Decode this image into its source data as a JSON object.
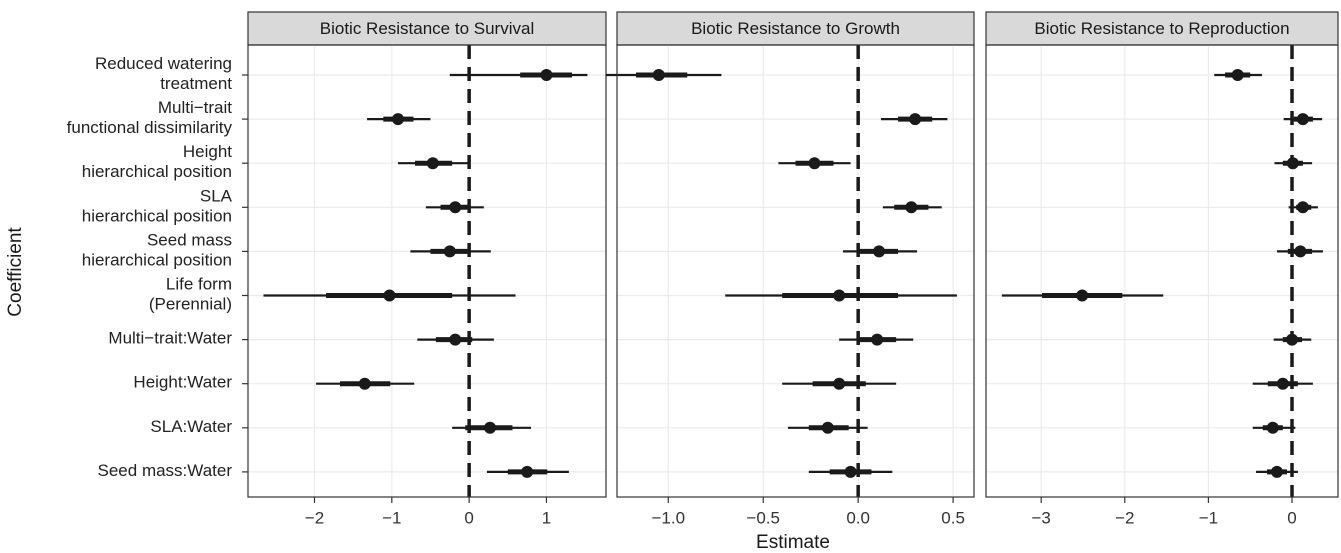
{
  "chart_data": {
    "type": "forest",
    "xlabel": "Estimate",
    "ylabel": "Coefficient",
    "ref_line": 0,
    "grid": true,
    "point_color": "#1a1a1a",
    "categories": [
      "Reduced watering\ntreatment",
      "Multi−trait\nfunctional dissimilarity",
      "Height\nhierarchical position",
      "SLA\nhierarchical position",
      "Seed mass\nhierarchical position",
      "Life form\n(Perennial)",
      "Multi−trait:Water",
      "Height:Water",
      "SLA:Water",
      "Seed mass:Water"
    ],
    "panels": [
      {
        "title": "Biotic Resistance to Survival",
        "xlim": [
          -2.86,
          1.77
        ],
        "xticks": [
          {
            "value": -2,
            "label": "−2"
          },
          {
            "value": -1,
            "label": "−1"
          },
          0,
          1
        ],
        "estimates": [
          1.0,
          -0.92,
          -0.47,
          -0.18,
          -0.25,
          -1.03,
          -0.18,
          -1.35,
          0.27,
          0.75
        ],
        "inner_low": [
          0.66,
          -1.11,
          -0.7,
          -0.37,
          -0.5,
          -1.85,
          -0.43,
          -1.67,
          -0.05,
          0.5
        ],
        "inner_high": [
          1.33,
          -0.72,
          -0.22,
          0.01,
          0.01,
          -0.22,
          0.04,
          -1.02,
          0.56,
          1.01
        ],
        "outer_low": [
          -0.25,
          -1.32,
          -0.92,
          -0.56,
          -0.76,
          -2.66,
          -0.67,
          -1.98,
          -0.22,
          0.23
        ],
        "outer_high": [
          1.53,
          -0.5,
          0.01,
          0.19,
          0.28,
          0.6,
          0.32,
          -0.71,
          0.8,
          1.29
        ]
      },
      {
        "title": "Biotic Resistance to Growth",
        "xlim": [
          -1.27,
          0.61
        ],
        "xticks": [
          {
            "value": -1,
            "label": "−1.0"
          },
          {
            "value": -0.5,
            "label": "−0.5"
          },
          {
            "value": 0,
            "label": "0.0"
          },
          0.5
        ],
        "estimates": [
          -1.05,
          0.3,
          -0.23,
          0.28,
          0.11,
          -0.1,
          0.1,
          -0.1,
          -0.16,
          -0.04
        ],
        "inner_low": [
          -1.17,
          0.21,
          -0.33,
          0.19,
          0,
          -0.4,
          0,
          -0.24,
          -0.26,
          -0.15
        ],
        "inner_high": [
          -0.9,
          0.39,
          -0.13,
          0.37,
          0.21,
          0.21,
          0.2,
          0.04,
          -0.05,
          0.07
        ],
        "outer_low": [
          -1.33,
          0.12,
          -0.42,
          0.13,
          -0.08,
          -0.7,
          -0.1,
          -0.4,
          -0.37,
          -0.26
        ],
        "outer_high": [
          -0.72,
          0.47,
          -0.04,
          0.44,
          0.31,
          0.52,
          0.29,
          0.2,
          0.05,
          0.18
        ]
      },
      {
        "title": "Biotic Resistance to Reproduction",
        "xlim": [
          -3.66,
          0.55
        ],
        "xticks": [
          {
            "value": -3,
            "label": "−3"
          },
          {
            "value": -2,
            "label": "−2"
          },
          {
            "value": -1,
            "label": "−1"
          },
          0
        ],
        "estimates": [
          -0.65,
          0.13,
          0.01,
          0.13,
          0.1,
          -2.51,
          0,
          -0.11,
          -0.23,
          -0.18
        ],
        "inner_low": [
          -0.8,
          0.02,
          -0.11,
          0.05,
          -0.05,
          -2.99,
          -0.11,
          -0.29,
          -0.35,
          -0.3
        ],
        "inner_high": [
          -0.5,
          0.25,
          0.13,
          0.23,
          0.24,
          -2.03,
          0.12,
          0.07,
          -0.11,
          -0.06
        ],
        "outer_low": [
          -0.93,
          -0.1,
          -0.21,
          -0.04,
          -0.18,
          -3.47,
          -0.22,
          -0.47,
          -0.47,
          -0.43
        ],
        "outer_high": [
          -0.36,
          0.36,
          0.24,
          0.31,
          0.37,
          -1.54,
          0.23,
          0.25,
          0.04,
          0.07
        ]
      }
    ]
  }
}
